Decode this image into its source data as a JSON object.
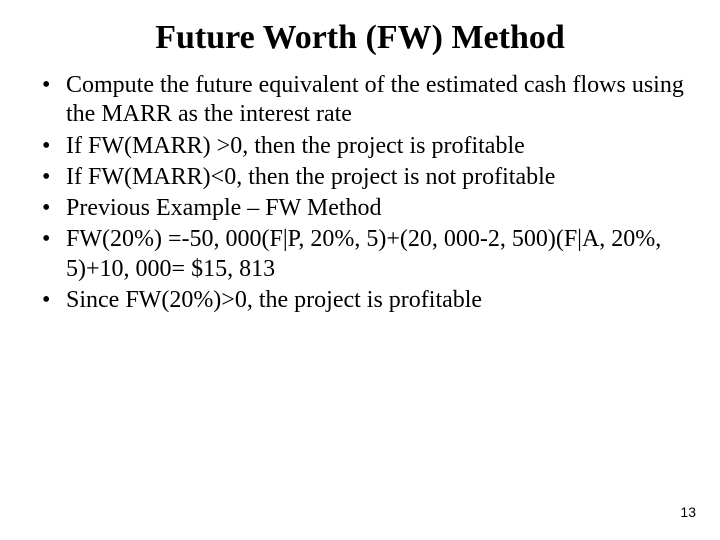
{
  "title": "Future Worth (FW) Method",
  "bullets": [
    "Compute the future equivalent of the estimated cash flows using the MARR as the interest rate",
    "If FW(MARR) >0, then the project is profitable",
    "If FW(MARR)<0, then the project is not profitable",
    "Previous Example – FW Method",
    "FW(20%) =-50, 000(F|P, 20%, 5)+(20, 000-2, 500)(F|A, 20%, 5)+10, 000= $15, 813",
    "Since FW(20%)>0, the project is profitable"
  ],
  "page_number": "13",
  "colors": {
    "background": "#ffffff",
    "text": "#000000"
  },
  "typography": {
    "title_fontsize_pt": 34,
    "body_fontsize_pt": 24,
    "pagenum_fontsize_pt": 14,
    "font_family": "Times New Roman"
  }
}
